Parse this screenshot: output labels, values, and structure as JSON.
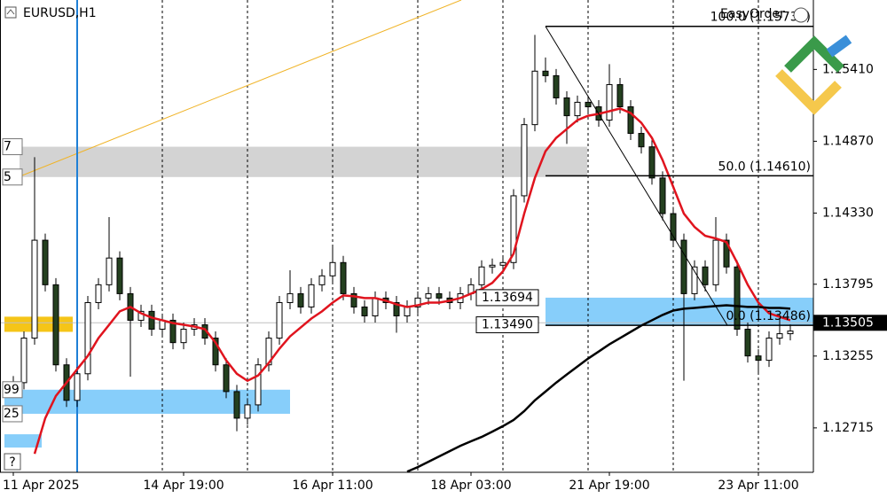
{
  "chart_data": {
    "type": "candlestick",
    "title": "EURUSD,H1",
    "indicator": "EasyOrder",
    "help": "?",
    "categories": [
      "11 Apr 2025",
      null,
      null,
      null,
      null,
      null,
      null,
      null,
      null,
      null,
      null,
      null,
      null,
      null,
      null,
      null,
      "14 Apr 19:00",
      null,
      null,
      null,
      null,
      null,
      null,
      null,
      null,
      null,
      null,
      null,
      null,
      null,
      "16 Apr 11:00",
      null,
      null,
      null,
      null,
      null,
      null,
      null,
      null,
      null,
      null,
      null,
      null,
      "18 Apr 03:00",
      null,
      null,
      null,
      null,
      null,
      null,
      null,
      null,
      null,
      null,
      null,
      null,
      "21 Apr 19:00",
      null,
      null,
      null,
      null,
      null,
      null,
      null,
      null,
      null,
      null,
      null,
      null,
      null,
      "23 Apr 11:00",
      null,
      null,
      null
    ],
    "open": [
      1.13,
      1.13055,
      1.1339,
      1.14126,
      1.13791,
      1.13189,
      1.12922,
      1.13122,
      1.13657,
      1.13791,
      1.13992,
      1.13724,
      1.13524,
      1.13591,
      1.13457,
      1.13524,
      1.13356,
      1.13457,
      1.1349,
      1.1339,
      1.13189,
      1.12988,
      1.12788,
      1.12888,
      1.13189,
      1.1339,
      1.13657,
      1.13724,
      1.13624,
      1.13791,
      1.13858,
      1.13958,
      1.13724,
      1.13624,
      1.13557,
      1.13691,
      1.13657,
      1.13557,
      1.13624,
      1.13691,
      1.13724,
      1.13691,
      1.13657,
      1.13724,
      1.13791,
      1.13925,
      1.13938,
      1.13958,
      1.1446,
      1.14995,
      1.15397,
      1.15363,
      1.15196,
      1.15062,
      1.15163,
      1.15129,
      1.15029,
      1.15296,
      1.15129,
      1.14929,
      1.14828,
      1.14594,
      1.14326,
      1.14126,
      1.13724,
      1.13925,
      1.13791,
      1.14126,
      1.13925,
      1.13457,
      1.13256,
      1.13223,
      1.1339,
      1.13423
    ],
    "high": [
      1.13105,
      1.1344,
      1.1475,
      1.14176,
      1.13841,
      1.13239,
      1.13172,
      1.13707,
      1.13841,
      1.143,
      1.14042,
      1.13774,
      1.13641,
      1.13641,
      1.13574,
      1.13574,
      1.13507,
      1.1354,
      1.1354,
      1.1344,
      1.13239,
      1.13038,
      1.12938,
      1.13239,
      1.1344,
      1.13707,
      1.139,
      1.13774,
      1.13841,
      1.13908,
      1.1409,
      1.14008,
      1.13774,
      1.13674,
      1.13741,
      1.13741,
      1.13707,
      1.13674,
      1.13741,
      1.13774,
      1.13774,
      1.13741,
      1.13774,
      1.13841,
      1.13975,
      1.13988,
      1.14008,
      1.1451,
      1.15045,
      1.1567,
      1.155,
      1.15413,
      1.15246,
      1.15213,
      1.15213,
      1.15179,
      1.1545,
      1.15346,
      1.15179,
      1.14979,
      1.14878,
      1.14644,
      1.14376,
      1.14176,
      1.13975,
      1.13975,
      1.143,
      1.14176,
      1.13975,
      1.13507,
      1.13306,
      1.1344,
      1.1354,
      1.13493
    ],
    "low": [
      1.1295,
      1.13005,
      1.1334,
      1.13741,
      1.13139,
      1.12872,
      1.12872,
      1.13072,
      1.13607,
      1.13741,
      1.13674,
      1.131,
      1.13474,
      1.13407,
      1.13407,
      1.13306,
      1.13306,
      1.13407,
      1.1334,
      1.13139,
      1.12938,
      1.1269,
      1.12738,
      1.12838,
      1.13139,
      1.1334,
      1.13607,
      1.13574,
      1.13574,
      1.13741,
      1.13808,
      1.13674,
      1.13574,
      1.13507,
      1.13507,
      1.13607,
      1.1343,
      1.13507,
      1.13574,
      1.13641,
      1.13641,
      1.13607,
      1.13607,
      1.13674,
      1.13741,
      1.13875,
      1.13888,
      1.13908,
      1.1441,
      1.14945,
      1.15313,
      1.15146,
      1.1485,
      1.15012,
      1.15079,
      1.14979,
      1.14979,
      1.15079,
      1.14879,
      1.14778,
      1.14544,
      1.14276,
      1.14076,
      1.1307,
      1.13674,
      1.13741,
      1.13741,
      1.13875,
      1.13407,
      1.13206,
      1.1312,
      1.13173,
      1.1334,
      1.13373
    ],
    "close": [
      1.13055,
      1.1339,
      1.14126,
      1.13791,
      1.13189,
      1.12922,
      1.13122,
      1.13657,
      1.13791,
      1.13992,
      1.13724,
      1.13524,
      1.13591,
      1.13457,
      1.13524,
      1.13356,
      1.13457,
      1.1349,
      1.1339,
      1.13189,
      1.12988,
      1.12788,
      1.12888,
      1.13189,
      1.1339,
      1.13657,
      1.13724,
      1.13624,
      1.13791,
      1.13858,
      1.13958,
      1.13724,
      1.13624,
      1.13557,
      1.13691,
      1.13657,
      1.13557,
      1.13624,
      1.13691,
      1.13724,
      1.13691,
      1.13657,
      1.13724,
      1.13791,
      1.13925,
      1.13938,
      1.13958,
      1.1446,
      1.14995,
      1.15397,
      1.15363,
      1.15196,
      1.15062,
      1.15163,
      1.15129,
      1.15029,
      1.15296,
      1.15129,
      1.14929,
      1.14828,
      1.14594,
      1.14326,
      1.14126,
      1.13724,
      1.13925,
      1.13791,
      1.14126,
      1.13925,
      1.13457,
      1.13256,
      1.13223,
      1.1339,
      1.13423,
      1.13443
    ],
    "up_color": "#ffffff",
    "down_color": "#24401f",
    "wick_color": "#000000",
    "series": [
      {
        "color": "#e0141e",
        "values": [
          null,
          null,
          1.1252,
          1.12788,
          1.12955,
          1.13055,
          1.13156,
          1.13256,
          1.1339,
          1.1349,
          1.13591,
          1.13624,
          1.13577,
          1.13544,
          1.13524,
          1.13503,
          1.1349,
          1.13477,
          1.13457,
          1.13356,
          1.13223,
          1.13122,
          1.13069,
          1.13109,
          1.13203,
          1.1331,
          1.13403,
          1.1347,
          1.13537,
          1.13591,
          1.13657,
          1.13711,
          1.13704,
          1.13691,
          1.13691,
          1.13671,
          1.13644,
          1.13624,
          1.13637,
          1.13657,
          1.13657,
          1.13671,
          1.13691,
          1.13724,
          1.13758,
          1.13805,
          1.13892,
          1.14025,
          1.14326,
          1.14594,
          1.14795,
          1.14895,
          1.14962,
          1.15029,
          1.15062,
          1.15076,
          1.15096,
          1.15116,
          1.15082,
          1.15009,
          1.14895,
          1.14728,
          1.14527,
          1.14326,
          1.14226,
          1.14159,
          1.14139,
          1.14112,
          1.13958,
          1.13791,
          1.13657,
          1.13577,
          1.1355,
          1.13524
        ]
      },
      {
        "color": "#000000",
        "values": [
          null,
          null,
          null,
          null,
          null,
          null,
          null,
          null,
          null,
          null,
          null,
          null,
          null,
          null,
          null,
          null,
          null,
          null,
          null,
          null,
          null,
          null,
          null,
          null,
          null,
          null,
          null,
          null,
          null,
          null,
          null,
          null,
          null,
          null,
          null,
          null,
          null,
          1.12386,
          1.1242,
          1.1246,
          1.125,
          1.1254,
          1.1258,
          1.12614,
          1.12647,
          1.12687,
          1.12728,
          1.12774,
          1.12841,
          1.12922,
          1.12988,
          1.13055,
          1.13116,
          1.13176,
          1.13236,
          1.13289,
          1.13343,
          1.1339,
          1.13437,
          1.13484,
          1.13524,
          1.13564,
          1.13597,
          1.13611,
          1.13617,
          1.13624,
          1.13631,
          1.13637,
          1.13631,
          1.13624,
          1.13624,
          1.13617,
          1.13617,
          1.13611
        ]
      }
    ],
    "ylim": [
      1.12381,
      1.15932
    ],
    "yticks": [
      {
        "value": 1.1541,
        "label": "1.15410"
      },
      {
        "value": 1.1487,
        "label": "1.14870"
      },
      {
        "value": 1.1433,
        "label": "1.14330"
      },
      {
        "value": 1.13795,
        "label": "1.13795"
      },
      {
        "value": 1.13255,
        "label": "1.13255"
      },
      {
        "value": 1.12715,
        "label": "1.12715"
      }
    ],
    "current_price": {
      "value": 1.13505,
      "label": "1.13505"
    },
    "fibonacci": [
      {
        "value": 1.15734,
        "label": "100.0 (1.15734)"
      },
      {
        "value": 1.1461,
        "label": "50.0 (1.14610)"
      },
      {
        "value": 1.13486,
        "label": "0.0 (1.13486)"
      }
    ],
    "zones": [
      {
        "top": {
          "value": 1.13694,
          "label": "1.13694"
        },
        "bottom": {
          "value": 1.1349,
          "label": "1.13490"
        },
        "color": "#87cefa"
      },
      {
        "top": 1.14829,
        "bottom": 1.14601,
        "labels": [
          "7",
          "5"
        ],
        "color": "#d3d3d3"
      },
      {
        "top": 1.13002,
        "bottom": 1.12821,
        "labels": [
          "99",
          "25"
        ],
        "color": "#87cefa"
      },
      {
        "top": 1.12667,
        "bottom": 1.12567,
        "color": "#87cefa"
      },
      {
        "top": 1.13551,
        "bottom": 1.13437,
        "color": "#f5c518"
      }
    ]
  }
}
